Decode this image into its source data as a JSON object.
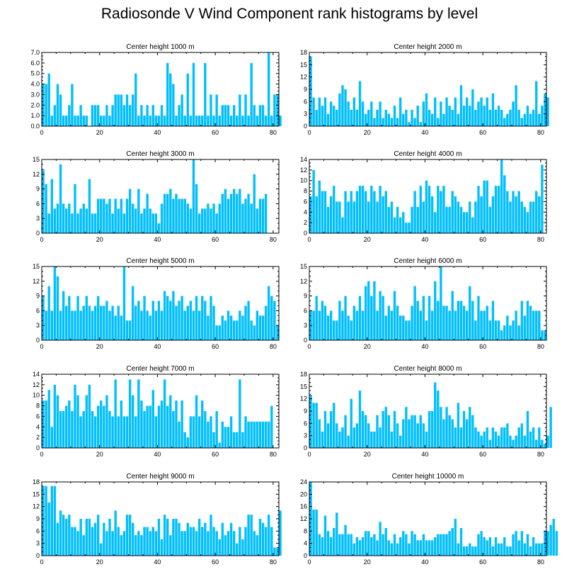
{
  "figure": {
    "title": "Radiosonde V Wind Component rank histograms by level"
  },
  "colors": {
    "bar": "#00bfff",
    "axis": "#000000",
    "background": "#ffffff"
  },
  "chart_data": [
    {
      "type": "bar",
      "title": "Center height 1000 m",
      "xlim": [
        0,
        82
      ],
      "ylim": [
        0,
        7
      ],
      "xticks": [
        0,
        20,
        40,
        60,
        80
      ],
      "yticks": [
        0,
        1,
        2,
        3,
        4,
        5,
        6,
        7
      ],
      "ytick_labels": [
        "0.0",
        "1.0",
        "2.0",
        "3.0",
        "4.0",
        "5.0",
        "6.0",
        "7.0"
      ],
      "values": [
        4,
        4,
        5,
        1,
        2,
        4,
        3,
        1,
        1,
        2,
        4,
        1,
        1,
        2,
        1,
        1,
        0,
        2,
        2,
        2,
        1,
        1,
        2,
        1,
        2,
        3,
        3,
        3,
        2,
        3,
        2,
        3,
        5,
        1,
        2,
        1,
        2,
        1,
        2,
        1,
        1,
        2,
        1,
        6,
        5,
        4,
        1,
        2,
        3,
        1,
        5,
        1,
        6,
        1,
        1,
        1,
        6,
        1,
        3,
        1,
        3,
        1,
        2,
        2,
        2,
        1,
        2,
        1,
        3,
        1,
        3,
        1,
        6,
        2,
        1,
        2,
        2,
        1,
        7,
        1,
        3,
        3,
        1
      ]
    },
    {
      "type": "bar",
      "title": "Center height 2000 m",
      "xlim": [
        0,
        82
      ],
      "ylim": [
        0,
        18
      ],
      "xticks": [
        0,
        20,
        40,
        60,
        80
      ],
      "yticks": [
        0,
        3,
        6,
        9,
        12,
        15,
        18
      ],
      "ytick_labels": [
        "0",
        "3",
        "6",
        "9",
        "12",
        "15",
        "18"
      ],
      "values": [
        17,
        7,
        4,
        7,
        5,
        7,
        3,
        6,
        5,
        4,
        8,
        10,
        9,
        6,
        4,
        7,
        4,
        11,
        6,
        3,
        4,
        6,
        2,
        4,
        6,
        2,
        4,
        3,
        2,
        5,
        2,
        7,
        3,
        4,
        1,
        4,
        2,
        5,
        1,
        6,
        8,
        4,
        3,
        7,
        2,
        6,
        3,
        7,
        5,
        4,
        7,
        3,
        10,
        5,
        7,
        5,
        9,
        4,
        6,
        7,
        5,
        7,
        4,
        8,
        4,
        5,
        4,
        2,
        3,
        4,
        6,
        10,
        4,
        2,
        3,
        5,
        3,
        4,
        11,
        3,
        5,
        8,
        7
      ]
    },
    {
      "type": "bar",
      "title": "Center height 3000 m",
      "xlim": [
        0,
        82
      ],
      "ylim": [
        0,
        15
      ],
      "xticks": [
        0,
        20,
        40,
        60,
        80
      ],
      "yticks": [
        0,
        3,
        6,
        9,
        12,
        15
      ],
      "ytick_labels": [
        "0",
        "3",
        "6",
        "9",
        "12",
        "15"
      ],
      "values": [
        13,
        10,
        4,
        11,
        5,
        6,
        14,
        6,
        5,
        6,
        4,
        10,
        4,
        5,
        6,
        5,
        11,
        4,
        4,
        7,
        7,
        7,
        6,
        7,
        4,
        7,
        5,
        7,
        4,
        7,
        9,
        6,
        5,
        9,
        4,
        5,
        8,
        5,
        4,
        4,
        2,
        6,
        8,
        8,
        9,
        7,
        8,
        7,
        7,
        7,
        6,
        5,
        15,
        10,
        4,
        5,
        5,
        6,
        5,
        6,
        4,
        6,
        8,
        9,
        7,
        8,
        9,
        8,
        9,
        6,
        7,
        8,
        6,
        12,
        5,
        7,
        7,
        8
      ]
    },
    {
      "type": "bar",
      "title": "Center height 4000 m",
      "xlim": [
        0,
        82
      ],
      "ylim": [
        0,
        14
      ],
      "xticks": [
        0,
        20,
        40,
        60,
        80
      ],
      "yticks": [
        0,
        2,
        4,
        6,
        8,
        10,
        12,
        14
      ],
      "ytick_labels": [
        "0",
        "2",
        "4",
        "6",
        "8",
        "10",
        "12",
        "14"
      ],
      "values": [
        7,
        12,
        7,
        10,
        8,
        8,
        5,
        7,
        9,
        6,
        6,
        3,
        8,
        6,
        8,
        6,
        8,
        9,
        9,
        8,
        6,
        9,
        8,
        6,
        9,
        7,
        8,
        5,
        6,
        3,
        5,
        3,
        4,
        2,
        2,
        5,
        8,
        5,
        9,
        6,
        10,
        9,
        7,
        4,
        9,
        8,
        9,
        5,
        5,
        8,
        7,
        6,
        5,
        4,
        4,
        6,
        3,
        6,
        9,
        7,
        10,
        10,
        5,
        7,
        9,
        9,
        14,
        11,
        8,
        6,
        8,
        7,
        8,
        6,
        5,
        4,
        6,
        6,
        8,
        7,
        13
      ]
    },
    {
      "type": "bar",
      "title": "Center height 5000 m",
      "xlim": [
        0,
        82
      ],
      "ylim": [
        0,
        15
      ],
      "xticks": [
        0,
        20,
        40,
        60,
        80
      ],
      "yticks": [
        0,
        3,
        6,
        9,
        12,
        15
      ],
      "ytick_labels": [
        "0",
        "3",
        "6",
        "9",
        "12",
        "15"
      ],
      "values": [
        9,
        6,
        11,
        6,
        15,
        13,
        6,
        10,
        7,
        9,
        6,
        6,
        9,
        6,
        7,
        9,
        7,
        6,
        7,
        9,
        7,
        7,
        8,
        6,
        7,
        5,
        7,
        5,
        15,
        4,
        4,
        11,
        7,
        8,
        6,
        9,
        6,
        5,
        8,
        6,
        8,
        6,
        10,
        9,
        8,
        10,
        7,
        8,
        9,
        6,
        7,
        8,
        6,
        9,
        6,
        9,
        8,
        5,
        9,
        7,
        3,
        3,
        5,
        4,
        6,
        5,
        4,
        4,
        6,
        5,
        7,
        8,
        4,
        3,
        6,
        5,
        5,
        7,
        11,
        9,
        8,
        3
      ]
    },
    {
      "type": "bar",
      "title": "Center height 6000 m",
      "xlim": [
        0,
        82
      ],
      "ylim": [
        0,
        15
      ],
      "xticks": [
        0,
        20,
        40,
        60,
        80
      ],
      "yticks": [
        0,
        3,
        6,
        9,
        12,
        15
      ],
      "ytick_labels": [
        "0",
        "3",
        "6",
        "9",
        "12",
        "15"
      ],
      "values": [
        6,
        6,
        9,
        6,
        8,
        7,
        5,
        6,
        4,
        4,
        8,
        6,
        9,
        5,
        4,
        7,
        6,
        9,
        6,
        11,
        12,
        9,
        12,
        6,
        10,
        9,
        5,
        7,
        6,
        10,
        7,
        5,
        5,
        4,
        4,
        7,
        11,
        8,
        6,
        9,
        4,
        9,
        6,
        12,
        8,
        15,
        7,
        7,
        6,
        10,
        6,
        8,
        8,
        7,
        6,
        11,
        8,
        4,
        9,
        6,
        6,
        7,
        4,
        8,
        4,
        4,
        2,
        3,
        5,
        3,
        4,
        6,
        3,
        8,
        5,
        8,
        7,
        6,
        6,
        6,
        2,
        2
      ]
    },
    {
      "type": "bar",
      "title": "Center height 7000 m",
      "xlim": [
        0,
        82
      ],
      "ylim": [
        0,
        14
      ],
      "xticks": [
        0,
        20,
        40,
        60,
        80
      ],
      "yticks": [
        0,
        2,
        4,
        6,
        8,
        10,
        12,
        14
      ],
      "ytick_labels": [
        "0",
        "2",
        "4",
        "6",
        "8",
        "10",
        "12",
        "14"
      ],
      "values": [
        9,
        9,
        11,
        4,
        12,
        10,
        7,
        7,
        8,
        9,
        7,
        12,
        10,
        6,
        7,
        10,
        12,
        7,
        6,
        8,
        9,
        8,
        10,
        7,
        6,
        13,
        6,
        9,
        6,
        6,
        13,
        10,
        6,
        13,
        9,
        7,
        8,
        8,
        11,
        6,
        8,
        9,
        13,
        8,
        10,
        7,
        9,
        5,
        9,
        3,
        2,
        6,
        6,
        10,
        6,
        9,
        7,
        5,
        6,
        3,
        7,
        1,
        5,
        4,
        4,
        6,
        3,
        3,
        13,
        3,
        6,
        5,
        5,
        5,
        5,
        5,
        5,
        5,
        5,
        8
      ]
    },
    {
      "type": "bar",
      "title": "Center height 8000 m",
      "xlim": [
        0,
        82
      ],
      "ylim": [
        0,
        18
      ],
      "xticks": [
        0,
        20,
        40,
        60,
        80
      ],
      "yticks": [
        0,
        3,
        6,
        9,
        12,
        15,
        18
      ],
      "ytick_labels": [
        "0",
        "3",
        "6",
        "9",
        "12",
        "15",
        "18"
      ],
      "values": [
        13,
        11,
        11,
        7,
        4,
        9,
        6,
        9,
        11,
        6,
        4,
        5,
        8,
        3,
        12,
        5,
        6,
        14,
        9,
        8,
        6,
        4,
        4,
        8,
        5,
        9,
        10,
        8,
        4,
        9,
        6,
        3,
        7,
        10,
        7,
        8,
        8,
        6,
        8,
        6,
        4,
        9,
        9,
        16,
        14,
        10,
        7,
        10,
        8,
        7,
        5,
        11,
        5,
        9,
        7,
        10,
        8,
        5,
        4,
        3,
        4,
        5,
        2,
        5,
        4,
        3,
        5,
        5,
        6,
        3,
        2,
        3,
        5,
        6,
        3,
        9,
        4,
        5,
        2,
        5,
        2,
        1,
        3,
        10
      ]
    },
    {
      "type": "bar",
      "title": "Center height 9000 m",
      "xlim": [
        0,
        82
      ],
      "ylim": [
        0,
        18
      ],
      "xticks": [
        0,
        20,
        40,
        60,
        80
      ],
      "yticks": [
        0,
        3,
        6,
        9,
        12,
        15,
        18
      ],
      "ytick_labels": [
        "0",
        "3",
        "6",
        "9",
        "12",
        "15",
        "18"
      ],
      "values": [
        17,
        17,
        13,
        17,
        17,
        8,
        11,
        10,
        9,
        10,
        7,
        7,
        6,
        9,
        5,
        9,
        9,
        7,
        8,
        10,
        3,
        8,
        6,
        9,
        6,
        11,
        7,
        5,
        6,
        10,
        10,
        8,
        5,
        6,
        5,
        7,
        7,
        6,
        7,
        6,
        9,
        4,
        10,
        9,
        5,
        9,
        9,
        8,
        6,
        6,
        8,
        7,
        7,
        6,
        9,
        7,
        8,
        6,
        10,
        7,
        6,
        4,
        8,
        5,
        6,
        8,
        6,
        3,
        7,
        4,
        7,
        10,
        10,
        6,
        5,
        9,
        8,
        7,
        10,
        7,
        2,
        2,
        11
      ]
    },
    {
      "type": "bar",
      "title": "Center height 10000 m",
      "xlim": [
        0,
        82
      ],
      "ylim": [
        0,
        24
      ],
      "xticks": [
        0,
        20,
        40,
        60,
        80
      ],
      "yticks": [
        0,
        4,
        8,
        12,
        16,
        20,
        24
      ],
      "ytick_labels": [
        "0",
        "4",
        "8",
        "12",
        "16",
        "20",
        "24"
      ],
      "values": [
        24,
        15,
        15,
        7,
        6,
        13,
        8,
        6,
        9,
        14,
        7,
        7,
        10,
        7,
        7,
        4,
        6,
        5,
        6,
        8,
        8,
        6,
        7,
        5,
        11,
        7,
        9,
        5,
        4,
        7,
        4,
        6,
        8,
        7,
        4,
        8,
        7,
        5,
        5,
        7,
        5,
        5,
        5,
        6,
        7,
        7,
        7,
        7,
        8,
        9,
        12,
        4,
        9,
        3,
        3,
        4,
        3,
        3,
        7,
        8,
        6,
        5,
        6,
        3,
        6,
        4,
        4,
        6,
        3,
        3,
        7,
        8,
        5,
        8,
        4,
        7,
        3,
        6,
        4,
        4,
        4,
        8,
        8,
        10,
        12,
        8
      ]
    }
  ]
}
